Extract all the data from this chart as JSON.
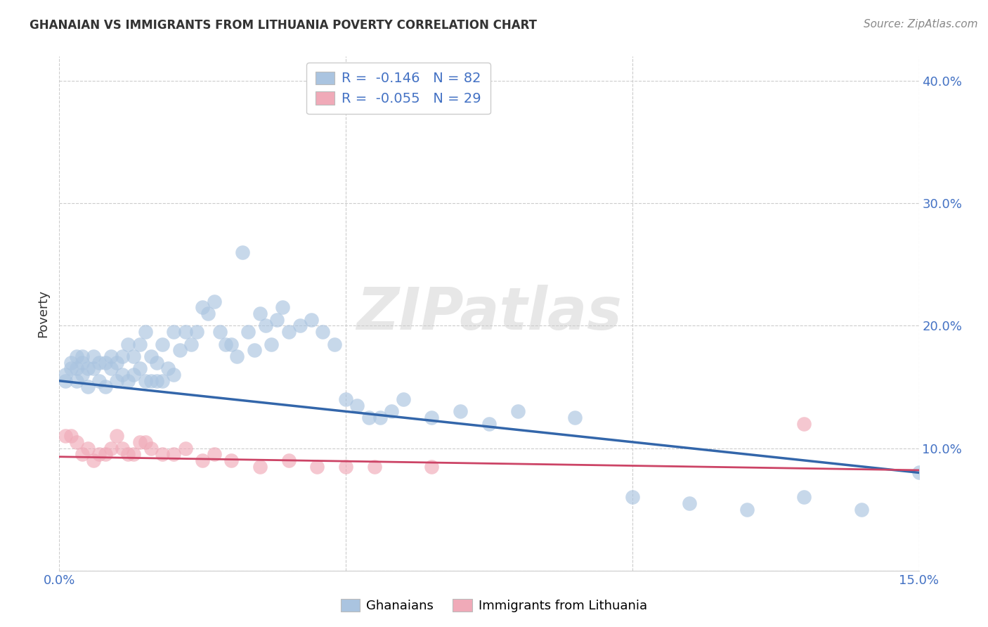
{
  "title": "GHANAIAN VS IMMIGRANTS FROM LITHUANIA POVERTY CORRELATION CHART",
  "source": "Source: ZipAtlas.com",
  "ylabel": "Poverty",
  "xlim": [
    0.0,
    0.15
  ],
  "ylim": [
    0.0,
    0.42
  ],
  "xtick_positions": [
    0.0,
    0.05,
    0.1,
    0.15
  ],
  "xtick_labels": [
    "0.0%",
    "",
    "",
    "15.0%"
  ],
  "ytick_positions": [
    0.0,
    0.1,
    0.2,
    0.3,
    0.4
  ],
  "ytick_labels": [
    "",
    "10.0%",
    "20.0%",
    "30.0%",
    "40.0%"
  ],
  "blue_R": -0.146,
  "blue_N": 82,
  "pink_R": -0.055,
  "pink_N": 29,
  "blue_color": "#aac4e0",
  "blue_line_color": "#3366aa",
  "pink_color": "#f0aab8",
  "pink_line_color": "#cc4466",
  "watermark": "ZIPatlas",
  "legend_label_blue": "Ghanaians",
  "legend_label_pink": "Immigrants from Lithuania",
  "blue_scatter_x": [
    0.001,
    0.001,
    0.002,
    0.002,
    0.003,
    0.003,
    0.003,
    0.004,
    0.004,
    0.004,
    0.005,
    0.005,
    0.006,
    0.006,
    0.007,
    0.007,
    0.008,
    0.008,
    0.009,
    0.009,
    0.01,
    0.01,
    0.011,
    0.011,
    0.012,
    0.012,
    0.013,
    0.013,
    0.014,
    0.014,
    0.015,
    0.015,
    0.016,
    0.016,
    0.017,
    0.017,
    0.018,
    0.018,
    0.019,
    0.02,
    0.02,
    0.021,
    0.022,
    0.023,
    0.024,
    0.025,
    0.026,
    0.027,
    0.028,
    0.029,
    0.03,
    0.031,
    0.032,
    0.033,
    0.034,
    0.035,
    0.036,
    0.037,
    0.038,
    0.039,
    0.04,
    0.042,
    0.044,
    0.046,
    0.048,
    0.05,
    0.052,
    0.054,
    0.056,
    0.058,
    0.06,
    0.065,
    0.07,
    0.075,
    0.08,
    0.09,
    0.1,
    0.11,
    0.12,
    0.13,
    0.14,
    0.15
  ],
  "blue_scatter_y": [
    0.155,
    0.16,
    0.165,
    0.17,
    0.155,
    0.165,
    0.175,
    0.16,
    0.17,
    0.175,
    0.15,
    0.165,
    0.165,
    0.175,
    0.155,
    0.17,
    0.15,
    0.17,
    0.165,
    0.175,
    0.155,
    0.17,
    0.16,
    0.175,
    0.155,
    0.185,
    0.16,
    0.175,
    0.165,
    0.185,
    0.155,
    0.195,
    0.155,
    0.175,
    0.155,
    0.17,
    0.155,
    0.185,
    0.165,
    0.16,
    0.195,
    0.18,
    0.195,
    0.185,
    0.195,
    0.215,
    0.21,
    0.22,
    0.195,
    0.185,
    0.185,
    0.175,
    0.26,
    0.195,
    0.18,
    0.21,
    0.2,
    0.185,
    0.205,
    0.215,
    0.195,
    0.2,
    0.205,
    0.195,
    0.185,
    0.14,
    0.135,
    0.125,
    0.125,
    0.13,
    0.14,
    0.125,
    0.13,
    0.12,
    0.13,
    0.125,
    0.06,
    0.055,
    0.05,
    0.06,
    0.05,
    0.08
  ],
  "pink_scatter_x": [
    0.001,
    0.002,
    0.003,
    0.004,
    0.005,
    0.006,
    0.007,
    0.008,
    0.009,
    0.01,
    0.011,
    0.012,
    0.013,
    0.014,
    0.015,
    0.016,
    0.018,
    0.02,
    0.022,
    0.025,
    0.027,
    0.03,
    0.035,
    0.04,
    0.045,
    0.05,
    0.055,
    0.065,
    0.13
  ],
  "pink_scatter_y": [
    0.11,
    0.11,
    0.105,
    0.095,
    0.1,
    0.09,
    0.095,
    0.095,
    0.1,
    0.11,
    0.1,
    0.095,
    0.095,
    0.105,
    0.105,
    0.1,
    0.095,
    0.095,
    0.1,
    0.09,
    0.095,
    0.09,
    0.085,
    0.09,
    0.085,
    0.085,
    0.085,
    0.085,
    0.12
  ],
  "blue_line_x": [
    0.0,
    0.15
  ],
  "blue_line_y": [
    0.155,
    0.08
  ],
  "pink_line_x": [
    0.0,
    0.15
  ],
  "pink_line_y": [
    0.093,
    0.082
  ],
  "background_color": "#ffffff",
  "grid_color": "#cccccc",
  "tick_color": "#4472c4",
  "title_color": "#333333",
  "source_color": "#888888"
}
